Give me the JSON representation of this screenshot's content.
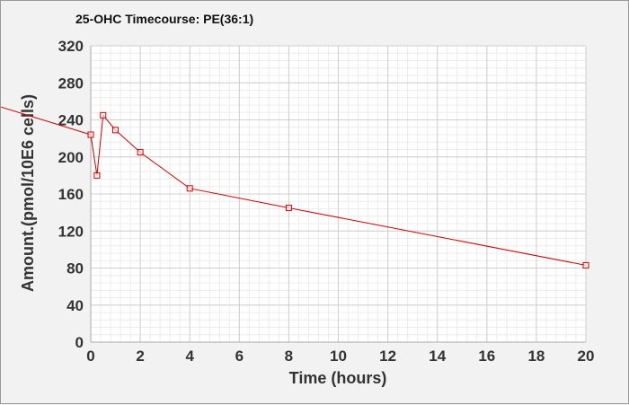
{
  "chart_data": {
    "type": "line",
    "title": "25-OHC Timecourse: PE(36:1)",
    "xlabel": "Time (hours)",
    "ylabel": "Amount.(pmol/10E6 cells)",
    "xlim": [
      0,
      20
    ],
    "ylim": [
      0,
      320
    ],
    "xticks": [
      0,
      2,
      4,
      6,
      8,
      10,
      12,
      14,
      16,
      18,
      20
    ],
    "yticks": [
      0,
      40,
      80,
      120,
      160,
      200,
      240,
      280,
      320
    ],
    "grid": true,
    "series": [
      {
        "color": "#cc0000",
        "marker": "square",
        "x": [
          0,
          0.25,
          0.5,
          1,
          2,
          4,
          8,
          20
        ],
        "y": [
          224,
          180,
          245,
          229,
          205,
          166,
          145,
          83
        ]
      }
    ],
    "trend_line": {
      "color": "#cc0000",
      "x": [
        -4,
        0
      ],
      "y": [
        257,
        224
      ]
    }
  }
}
